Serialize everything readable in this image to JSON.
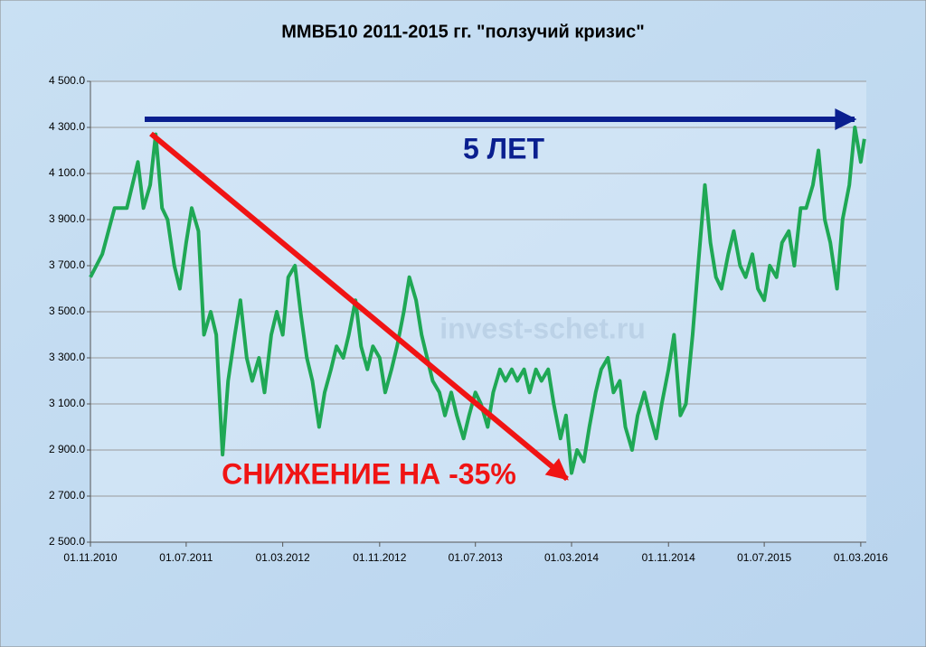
{
  "chart_data": {
    "type": "line",
    "title": "ММВБ10 2011-2015 гг. \"ползучий кризис\"",
    "annotations": [
      "5 ЛЕТ",
      "СНИЖЕНИЕ НА -35%",
      "invest-schet.ru"
    ],
    "x": [
      "2010-11-01",
      "2010-12-01",
      "2011-01-01",
      "2011-02-01",
      "2011-03-01",
      "2011-03-15",
      "2011-04-01",
      "2011-04-15",
      "2011-05-01",
      "2011-05-15",
      "2011-06-01",
      "2011-06-15",
      "2011-07-01",
      "2011-07-15",
      "2011-08-01",
      "2011-08-15",
      "2011-09-01",
      "2011-09-15",
      "2011-10-01",
      "2011-10-15",
      "2011-11-01",
      "2011-11-15",
      "2011-12-01",
      "2011-12-15",
      "2012-01-01",
      "2012-01-15",
      "2012-02-01",
      "2012-02-15",
      "2012-03-01",
      "2012-03-15",
      "2012-04-01",
      "2012-04-15",
      "2012-05-01",
      "2012-05-15",
      "2012-06-01",
      "2012-06-15",
      "2012-07-01",
      "2012-07-15",
      "2012-08-01",
      "2012-08-15",
      "2012-09-01",
      "2012-09-15",
      "2012-10-01",
      "2012-10-15",
      "2012-11-01",
      "2012-11-15",
      "2012-12-01",
      "2012-12-15",
      "2013-01-01",
      "2013-01-15",
      "2013-02-01",
      "2013-02-15",
      "2013-03-01",
      "2013-03-15",
      "2013-04-01",
      "2013-04-15",
      "2013-05-01",
      "2013-05-15",
      "2013-06-01",
      "2013-06-15",
      "2013-07-01",
      "2013-07-15",
      "2013-08-01",
      "2013-08-15",
      "2013-09-01",
      "2013-09-15",
      "2013-10-01",
      "2013-10-15",
      "2013-11-01",
      "2013-11-15",
      "2013-12-01",
      "2013-12-15",
      "2014-01-01",
      "2014-01-15",
      "2014-02-01",
      "2014-02-15",
      "2014-03-01",
      "2014-03-15",
      "2014-04-01",
      "2014-04-15",
      "2014-05-01",
      "2014-05-15",
      "2014-06-01",
      "2014-06-15",
      "2014-07-01",
      "2014-07-15",
      "2014-08-01",
      "2014-08-15",
      "2014-09-01",
      "2014-09-15",
      "2014-10-01",
      "2014-10-15",
      "2014-11-01",
      "2014-11-15",
      "2014-12-01",
      "2014-12-15",
      "2015-01-01",
      "2015-01-15",
      "2015-02-01",
      "2015-02-15",
      "2015-03-01",
      "2015-03-15",
      "2015-04-01",
      "2015-04-15",
      "2015-05-01",
      "2015-05-15",
      "2015-06-01",
      "2015-06-15",
      "2015-07-01",
      "2015-07-15",
      "2015-08-01",
      "2015-08-15",
      "2015-09-01",
      "2015-09-15",
      "2015-10-01",
      "2015-10-15",
      "2015-11-01",
      "2015-11-15",
      "2015-12-01",
      "2015-12-15",
      "2016-01-01",
      "2016-01-15",
      "2016-02-01",
      "2016-02-15",
      "2016-03-01",
      "2016-03-10"
    ],
    "series": [
      {
        "color": "#1fa855",
        "values": [
          3650,
          3750,
          3950,
          3950,
          4150,
          3950,
          4050,
          4270,
          3950,
          3900,
          3700,
          3600,
          3800,
          3950,
          3850,
          3400,
          3500,
          3400,
          2880,
          3200,
          3400,
          3550,
          3300,
          3200,
          3300,
          3150,
          3400,
          3500,
          3400,
          3650,
          3700,
          3500,
          3300,
          3200,
          3000,
          3150,
          3250,
          3350,
          3300,
          3400,
          3550,
          3350,
          3250,
          3350,
          3300,
          3150,
          3250,
          3350,
          3500,
          3650,
          3550,
          3400,
          3300,
          3200,
          3150,
          3050,
          3150,
          3050,
          2950,
          3050,
          3150,
          3100,
          3000,
          3150,
          3250,
          3200,
          3250,
          3200,
          3250,
          3150,
          3250,
          3200,
          3250,
          3100,
          2950,
          3050,
          2800,
          2900,
          2850,
          3000,
          3150,
          3250,
          3300,
          3150,
          3200,
          3000,
          2900,
          3050,
          3150,
          3050,
          2950,
          3100,
          3250,
          3400,
          3050,
          3100,
          3400,
          3700,
          4050,
          3800,
          3650,
          3600,
          3750,
          3850,
          3700,
          3650,
          3750,
          3600,
          3550,
          3700,
          3650,
          3800,
          3850,
          3700,
          3950,
          3950,
          4050,
          4200,
          3900,
          3800,
          3600,
          3900,
          4050,
          4300,
          4150,
          4250
        ]
      }
    ],
    "xlim": [
      "2010-11-01",
      "2016-03-15"
    ],
    "xticks": [
      {
        "value": "2010-11-01",
        "label": "01.11.2010"
      },
      {
        "value": "2011-07-01",
        "label": "01.07.2011"
      },
      {
        "value": "2012-03-01",
        "label": "01.03.2012"
      },
      {
        "value": "2012-11-01",
        "label": "01.11.2012"
      },
      {
        "value": "2013-07-01",
        "label": "01.07.2013"
      },
      {
        "value": "2014-03-01",
        "label": "01.03.2014"
      },
      {
        "value": "2014-11-01",
        "label": "01.11.2014"
      },
      {
        "value": "2015-07-01",
        "label": "01.07.2015"
      },
      {
        "value": "2016-03-01",
        "label": "01.03.2016"
      }
    ],
    "ylim": [
      2500,
      4500
    ],
    "yticks": [
      {
        "value": 2500,
        "label": "2 500.0"
      },
      {
        "value": 2700,
        "label": "2 700.0"
      },
      {
        "value": 2900,
        "label": "2 900.0"
      },
      {
        "value": 3100,
        "label": "3 100.0"
      },
      {
        "value": 3300,
        "label": "3 300.0"
      },
      {
        "value": 3500,
        "label": "3 500.0"
      },
      {
        "value": 3700,
        "label": "3 700.0"
      },
      {
        "value": 3900,
        "label": "3 900.0"
      },
      {
        "value": 4100,
        "label": "4 100.0"
      },
      {
        "value": 4300,
        "label": "4 300.0"
      },
      {
        "value": 4500,
        "label": "4 500.0"
      }
    ],
    "grid": true
  }
}
